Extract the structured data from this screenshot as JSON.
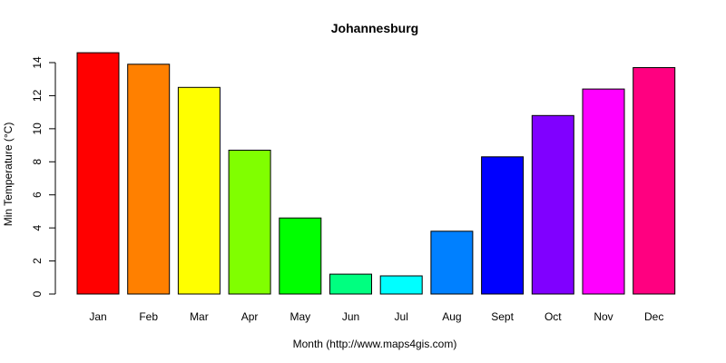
{
  "chart_data": {
    "type": "bar",
    "title": "Johannesburg",
    "xlabel": "Month (http://www.maps4gis.com)",
    "ylabel": "Min Temperature (°C)",
    "ylim": [
      0,
      14
    ],
    "yticks": [
      0,
      2,
      4,
      6,
      8,
      10,
      12,
      14
    ],
    "categories": [
      "Jan",
      "Feb",
      "Mar",
      "Apr",
      "May",
      "Jun",
      "Jul",
      "Aug",
      "Sept",
      "Oct",
      "Nov",
      "Dec"
    ],
    "values": [
      14.6,
      13.9,
      12.5,
      8.7,
      4.6,
      1.2,
      1.1,
      3.8,
      8.3,
      10.8,
      12.4,
      13.7
    ],
    "colors": [
      "#FF0000",
      "#FF8000",
      "#FFFF00",
      "#80FF00",
      "#00FF00",
      "#00FF80",
      "#00FFFF",
      "#0080FF",
      "#0000FF",
      "#8000FF",
      "#FF00FF",
      "#FF0080"
    ],
    "grid": false,
    "legend": "none"
  }
}
